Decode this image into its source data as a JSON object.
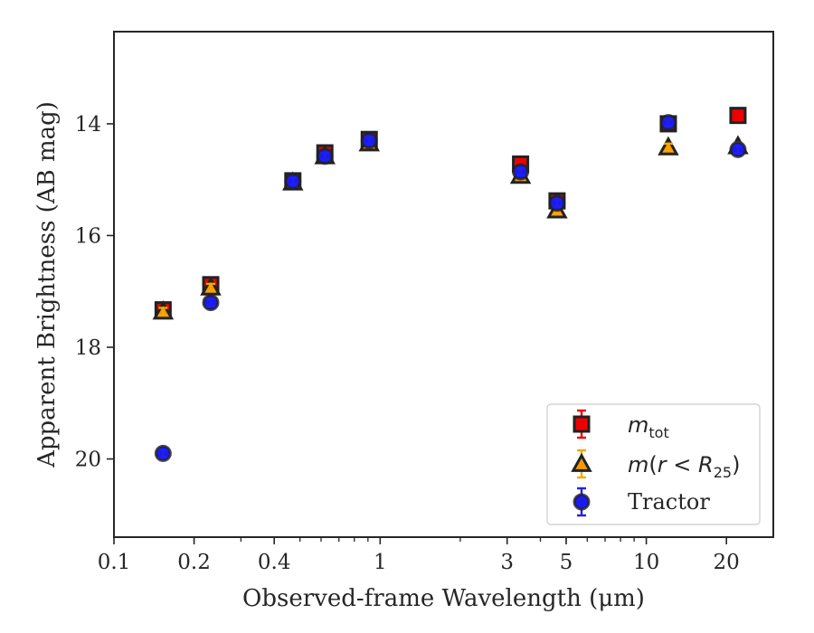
{
  "chart_data": {
    "type": "scatter",
    "xlabel_html": "Observed-frame Wavelength (μm)",
    "ylabel": "Apparent Brightness (AB mag)",
    "x_scale": "log",
    "xlim": [
      0.1,
      30
    ],
    "ylim": [
      21.4,
      12.35
    ],
    "y_inverted": true,
    "xticks": [
      0.1,
      0.2,
      0.4,
      1,
      3,
      5,
      10,
      20
    ],
    "xtick_labels": [
      "0.1",
      "0.2",
      "0.4",
      "1",
      "3",
      "5",
      "10",
      "20"
    ],
    "yticks": [
      14,
      16,
      18,
      20
    ],
    "ytick_labels": [
      "14",
      "16",
      "18",
      "20"
    ],
    "grid": false,
    "legend_placement": "lower-right",
    "series": [
      {
        "name": "m_tot",
        "legend_label": "mtot",
        "marker": "square",
        "fill": "#ee0000",
        "edge": "#222222",
        "errcolor": "#ee0000",
        "points": [
          {
            "x": 0.153,
            "y": 17.33
          },
          {
            "x": 0.231,
            "y": 16.88
          },
          {
            "x": 0.47,
            "y": 15.02
          },
          {
            "x": 0.62,
            "y": 14.52
          },
          {
            "x": 0.91,
            "y": 14.28
          },
          {
            "x": 3.37,
            "y": 14.72
          },
          {
            "x": 4.62,
            "y": 15.38
          },
          {
            "x": 12.1,
            "y": 14.0
          },
          {
            "x": 22.1,
            "y": 13.85
          }
        ]
      },
      {
        "name": "m(r < R25)",
        "legend_label": "m(r < R25)",
        "marker": "triangle",
        "fill": "#f59a00",
        "edge": "#222222",
        "errcolor": "#f5a800",
        "points": [
          {
            "x": 0.153,
            "y": 17.36
          },
          {
            "x": 0.231,
            "y": 16.93
          },
          {
            "x": 0.47,
            "y": 15.05
          },
          {
            "x": 0.62,
            "y": 14.58
          },
          {
            "x": 0.91,
            "y": 14.35
          },
          {
            "x": 3.37,
            "y": 14.93
          },
          {
            "x": 4.62,
            "y": 15.55
          },
          {
            "x": 12.1,
            "y": 14.42
          },
          {
            "x": 22.1,
            "y": 14.4
          }
        ]
      },
      {
        "name": "Tractor",
        "legend_label": "Tractor",
        "marker": "circle",
        "fill": "#1a1aee",
        "edge": "#222222",
        "errcolor": "#2020ee",
        "points": [
          {
            "x": 0.153,
            "y": 19.9
          },
          {
            "x": 0.231,
            "y": 17.2
          },
          {
            "x": 0.47,
            "y": 15.03
          },
          {
            "x": 0.62,
            "y": 14.58
          },
          {
            "x": 0.91,
            "y": 14.3
          },
          {
            "x": 3.37,
            "y": 14.86
          },
          {
            "x": 4.62,
            "y": 15.42
          },
          {
            "x": 12.1,
            "y": 13.98
          },
          {
            "x": 22.1,
            "y": 14.46
          }
        ]
      }
    ]
  }
}
